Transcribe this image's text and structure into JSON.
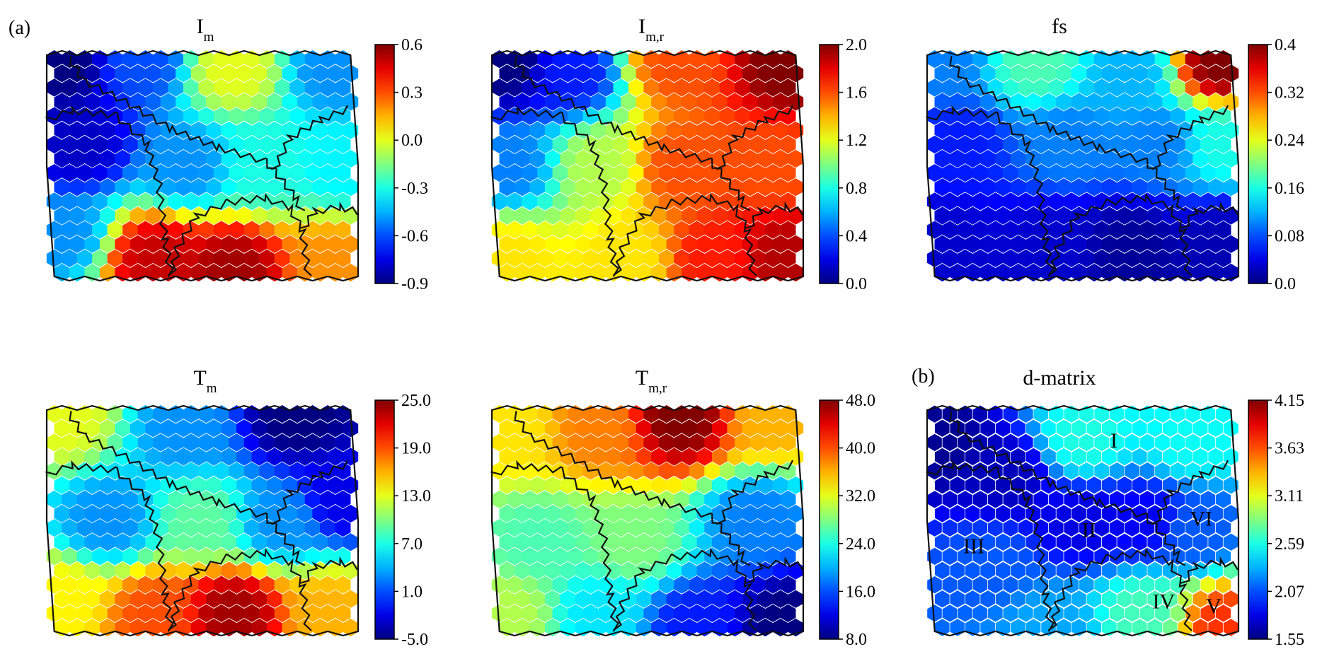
{
  "figure": {
    "panel_labels": [
      "(a)",
      "(b)"
    ]
  },
  "chart_data": [
    {
      "type": "heatmap",
      "title_base": "I",
      "title_sub": "m",
      "colorbar": {
        "min": -0.9,
        "max": 0.6,
        "ticks": [
          "0.6",
          "0.3",
          "0.0",
          "-0.3",
          "-0.6",
          "-0.9"
        ]
      },
      "field_points": [
        [
          0.05,
          0.05,
          -0.9
        ],
        [
          0.3,
          0.05,
          -0.6
        ],
        [
          0.6,
          0.08,
          0.0
        ],
        [
          0.92,
          0.08,
          -0.5
        ],
        [
          0.1,
          0.4,
          -0.8
        ],
        [
          0.45,
          0.5,
          -0.5
        ],
        [
          0.7,
          0.5,
          -0.3
        ],
        [
          0.95,
          0.5,
          -0.35
        ],
        [
          0.05,
          0.8,
          -0.5
        ],
        [
          0.35,
          0.9,
          0.5
        ],
        [
          0.6,
          0.95,
          0.55
        ],
        [
          0.92,
          0.92,
          0.2
        ]
      ]
    },
    {
      "type": "heatmap",
      "title_base": "I",
      "title_sub": "m,r",
      "colorbar": {
        "min": 0.0,
        "max": 2.0,
        "ticks": [
          "2.0",
          "1.6",
          "1.2",
          "0.8",
          "0.4",
          "0.0"
        ]
      },
      "field_points": [
        [
          0.05,
          0.05,
          0.0
        ],
        [
          0.25,
          0.1,
          0.3
        ],
        [
          0.6,
          0.05,
          1.6
        ],
        [
          0.95,
          0.05,
          2.0
        ],
        [
          0.05,
          0.5,
          0.5
        ],
        [
          0.35,
          0.5,
          1.1
        ],
        [
          0.6,
          0.5,
          1.6
        ],
        [
          0.9,
          0.5,
          1.6
        ],
        [
          0.05,
          0.9,
          1.3
        ],
        [
          0.45,
          0.9,
          1.3
        ],
        [
          0.7,
          0.9,
          1.7
        ],
        [
          0.95,
          0.9,
          1.9
        ]
      ]
    },
    {
      "type": "heatmap",
      "title_base": "fs",
      "title_sub": "",
      "colorbar": {
        "min": 0.0,
        "max": 0.4,
        "ticks": [
          "0.4",
          "0.32",
          "0.24",
          "0.16",
          "0.08",
          "0.0"
        ]
      },
      "field_points": [
        [
          0.05,
          0.05,
          0.1
        ],
        [
          0.35,
          0.05,
          0.18
        ],
        [
          0.65,
          0.1,
          0.12
        ],
        [
          0.95,
          0.05,
          0.4
        ],
        [
          0.1,
          0.4,
          0.06
        ],
        [
          0.45,
          0.4,
          0.1
        ],
        [
          0.75,
          0.4,
          0.1
        ],
        [
          0.95,
          0.4,
          0.16
        ],
        [
          0.05,
          0.85,
          0.03
        ],
        [
          0.4,
          0.85,
          0.03
        ],
        [
          0.65,
          0.85,
          0.01
        ],
        [
          0.95,
          0.85,
          0.02
        ]
      ]
    },
    {
      "type": "heatmap",
      "title_base": "T",
      "title_sub": "m",
      "colorbar": {
        "min": -5.0,
        "max": 25.0,
        "ticks": [
          "25.0",
          "19.0",
          "13.0",
          "7.0",
          "1.0",
          "-5.0"
        ]
      },
      "field_points": [
        [
          0.05,
          0.05,
          13.0
        ],
        [
          0.45,
          0.1,
          3.0
        ],
        [
          0.8,
          0.05,
          -5.0
        ],
        [
          0.95,
          0.4,
          -2.0
        ],
        [
          0.2,
          0.5,
          3.0
        ],
        [
          0.5,
          0.5,
          9.0
        ],
        [
          0.75,
          0.5,
          3.0
        ],
        [
          0.05,
          0.85,
          14.0
        ],
        [
          0.35,
          0.9,
          19.0
        ],
        [
          0.6,
          0.9,
          24.0
        ],
        [
          0.9,
          0.9,
          16.0
        ]
      ]
    },
    {
      "type": "heatmap",
      "title_base": "T",
      "title_sub": "m,r",
      "colorbar": {
        "min": 8.0,
        "max": 48.0,
        "ticks": [
          "48.0",
          "40.0",
          "32.0",
          "24.0",
          "16.0",
          "8.0"
        ]
      },
      "field_points": [
        [
          0.05,
          0.1,
          34.0
        ],
        [
          0.35,
          0.1,
          38.0
        ],
        [
          0.6,
          0.05,
          48.0
        ],
        [
          0.9,
          0.05,
          36.0
        ],
        [
          0.15,
          0.6,
          26.0
        ],
        [
          0.45,
          0.6,
          28.0
        ],
        [
          0.85,
          0.5,
          18.0
        ],
        [
          0.05,
          0.9,
          30.0
        ],
        [
          0.35,
          0.9,
          22.0
        ],
        [
          0.65,
          0.95,
          14.0
        ],
        [
          0.95,
          0.95,
          8.0
        ]
      ]
    },
    {
      "type": "heatmap",
      "title_base": "d-matrix",
      "title_sub": "",
      "colorbar": {
        "min": 1.55,
        "max": 4.15,
        "ticks": [
          "4.15",
          "3.63",
          "3.11",
          "2.59",
          "2.07",
          "1.55"
        ]
      },
      "clusters": [
        "I",
        "II",
        "III",
        "IV",
        "V",
        "VI"
      ],
      "field_points": [
        [
          0.02,
          0.15,
          1.6
        ],
        [
          0.25,
          0.3,
          1.7
        ],
        [
          0.5,
          0.5,
          1.8
        ],
        [
          0.7,
          0.5,
          1.85
        ],
        [
          0.5,
          0.15,
          2.6
        ],
        [
          0.85,
          0.15,
          2.55
        ],
        [
          0.2,
          0.7,
          2.1
        ],
        [
          0.85,
          0.55,
          2.1
        ],
        [
          0.7,
          0.9,
          2.7
        ],
        [
          0.95,
          0.95,
          3.7
        ],
        [
          0.4,
          0.95,
          2.3
        ]
      ]
    }
  ]
}
